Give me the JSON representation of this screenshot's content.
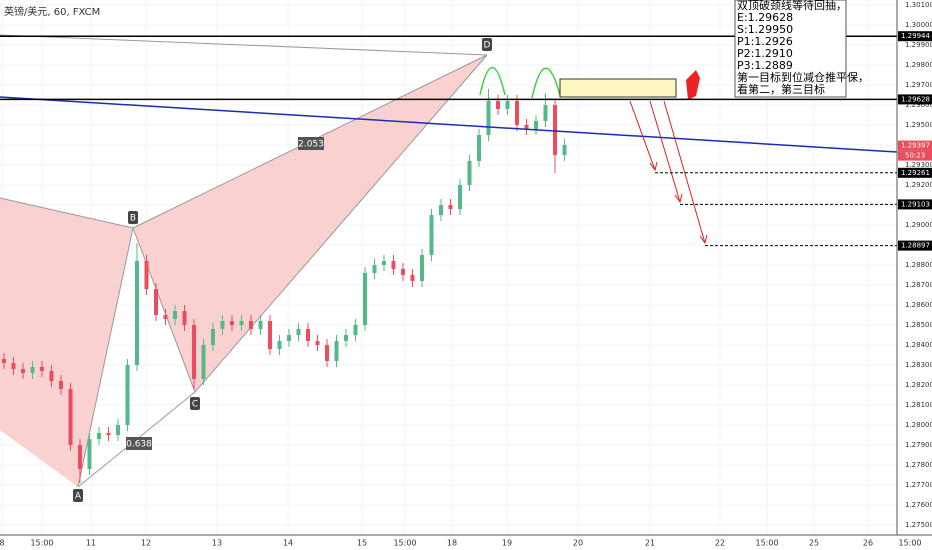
{
  "chart_data": {
    "type": "candlestick",
    "title": "英镑/美元, 60, FXCM",
    "ylim": [
      1.2745,
      1.30125
    ],
    "xlim": [
      -0.42,
      94
    ],
    "yticks": [
      {
        "value": 1.301,
        "label": "1.30100"
      },
      {
        "value": 1.3,
        "label": "1.30000"
      },
      {
        "value": 1.299,
        "label": "1.29900"
      },
      {
        "value": 1.298,
        "label": "1.29800"
      },
      {
        "value": 1.297,
        "label": "1.29700"
      },
      {
        "value": 1.296,
        "label": "1.29600"
      },
      {
        "value": 1.295,
        "label": "1.29500"
      },
      {
        "value": 1.294,
        "label": "1.29400"
      },
      {
        "value": 1.293,
        "label": "1.29300"
      },
      {
        "value": 1.292,
        "label": "1.29200"
      },
      {
        "value": 1.291,
        "label": "1.29100"
      },
      {
        "value": 1.29,
        "label": "1.29000"
      },
      {
        "value": 1.289,
        "label": "1.28900"
      },
      {
        "value": 1.288,
        "label": "1.28800"
      },
      {
        "value": 1.287,
        "label": "1.28700"
      },
      {
        "value": 1.286,
        "label": "1.28600"
      },
      {
        "value": 1.285,
        "label": "1.28500"
      },
      {
        "value": 1.284,
        "label": "1.28400"
      },
      {
        "value": 1.283,
        "label": "1.28300"
      },
      {
        "value": 1.282,
        "label": "1.28200"
      },
      {
        "value": 1.281,
        "label": "1.28100"
      },
      {
        "value": 1.28,
        "label": "1.28000"
      },
      {
        "value": 1.279,
        "label": "1.27900"
      },
      {
        "value": 1.278,
        "label": "1.27800"
      },
      {
        "value": 1.277,
        "label": "1.27700"
      },
      {
        "value": 1.276,
        "label": "1.27600"
      },
      {
        "value": 1.275,
        "label": "1.27500"
      }
    ],
    "xticks": [
      {
        "value": -0.21,
        "label": "8"
      },
      {
        "value": 4.0,
        "label": "15:00"
      },
      {
        "value": 9.16,
        "label": "11"
      },
      {
        "value": 14.95,
        "label": "12"
      },
      {
        "value": 22.42,
        "label": "13"
      },
      {
        "value": 29.9,
        "label": "14"
      },
      {
        "value": 37.68,
        "label": "15"
      },
      {
        "value": 42.21,
        "label": "15:00"
      },
      {
        "value": 47.16,
        "label": "18"
      },
      {
        "value": 52.95,
        "label": "19"
      },
      {
        "value": 60.42,
        "label": "20"
      },
      {
        "value": 68.0,
        "label": "21"
      },
      {
        "value": 75.37,
        "label": "22"
      },
      {
        "value": 80.32,
        "label": "15:00"
      },
      {
        "value": 85.26,
        "label": "25"
      },
      {
        "value": 90.95,
        "label": "26"
      },
      {
        "value": 95.37,
        "label": "15:00"
      }
    ],
    "up_color": "#53b987",
    "down_color": "#eb4d5c",
    "open": [
      1.2833,
      1.2831,
      1.2828,
      1.2826,
      1.2829,
      1.2827,
      1.2822,
      1.2818,
      1.279,
      1.2778,
      1.2793,
      1.2796,
      1.2795,
      1.28,
      1.283,
      1.2882,
      1.2868,
      1.2855,
      1.2853,
      1.2857,
      1.285,
      1.2823,
      1.284,
      1.2848,
      1.2852,
      1.285,
      1.2852,
      1.2848,
      1.2852,
      1.2838,
      1.2842,
      1.2845,
      1.2848,
      1.2842,
      1.284,
      1.2832,
      1.2842,
      1.2845,
      1.285,
      1.2876,
      1.288,
      1.2882,
      1.2878,
      1.2875,
      1.2872,
      1.2885,
      1.2905,
      1.291,
      1.2908,
      1.292,
      1.2932,
      1.2945,
      1.2962,
      1.2958,
      1.2962,
      1.295,
      1.2948,
      1.2952,
      1.296,
      1.2935
    ],
    "high": [
      1.2836,
      1.2834,
      1.2831,
      1.2832,
      1.2832,
      1.283,
      1.2825,
      1.2821,
      1.2793,
      1.2796,
      1.2799,
      1.2799,
      1.2803,
      1.2833,
      1.2891,
      1.2885,
      1.2871,
      1.2858,
      1.286,
      1.286,
      1.2853,
      1.2843,
      1.2851,
      1.2855,
      1.2855,
      1.2855,
      1.2855,
      1.2855,
      1.2855,
      1.2845,
      1.2848,
      1.2851,
      1.2851,
      1.2845,
      1.2843,
      1.2845,
      1.2848,
      1.2853,
      1.2879,
      1.2883,
      1.2885,
      1.2885,
      1.2881,
      1.2878,
      1.2888,
      1.2908,
      1.2913,
      1.2913,
      1.2923,
      1.2935,
      1.2948,
      1.2968,
      1.2965,
      1.2965,
      1.2965,
      1.2953,
      1.2955,
      1.2966,
      1.2963,
      1.2943
    ],
    "low": [
      1.2828,
      1.2825,
      1.2823,
      1.2823,
      1.2824,
      1.2819,
      1.2815,
      1.2787,
      1.2771,
      1.2775,
      1.279,
      1.2792,
      1.2792,
      1.2797,
      1.2827,
      1.2865,
      1.2852,
      1.285,
      1.285,
      1.2847,
      1.2818,
      1.282,
      1.2837,
      1.2845,
      1.2847,
      1.2847,
      1.2845,
      1.2845,
      1.2835,
      1.2835,
      1.2839,
      1.2842,
      1.2839,
      1.2837,
      1.2829,
      1.2829,
      1.2839,
      1.2842,
      1.2847,
      1.2873,
      1.2877,
      1.2875,
      1.2872,
      1.2869,
      1.2869,
      1.2882,
      1.2902,
      1.2905,
      1.2905,
      1.2917,
      1.2929,
      1.2942,
      1.2955,
      1.2955,
      1.2947,
      1.2945,
      1.2945,
      1.2949,
      1.2926,
      1.2932
    ],
    "close": [
      1.2831,
      1.2828,
      1.2826,
      1.2829,
      1.2827,
      1.2822,
      1.2818,
      1.279,
      1.2778,
      1.2793,
      1.2796,
      1.2795,
      1.28,
      1.283,
      1.2882,
      1.2868,
      1.2855,
      1.2853,
      1.2857,
      1.285,
      1.2823,
      1.284,
      1.2848,
      1.2852,
      1.285,
      1.2852,
      1.2848,
      1.2852,
      1.2838,
      1.2842,
      1.2845,
      1.2848,
      1.2842,
      1.284,
      1.2832,
      1.2842,
      1.2845,
      1.285,
      1.2876,
      1.288,
      1.2882,
      1.2878,
      1.2875,
      1.2872,
      1.2885,
      1.2905,
      1.291,
      1.2908,
      1.292,
      1.2932,
      1.2945,
      1.2962,
      1.2958,
      1.2962,
      1.295,
      1.2948,
      1.2952,
      1.296,
      1.2935,
      1.294
    ],
    "price_labels": [
      {
        "value": 1.29944,
        "label": "1.29944",
        "color": "#000000"
      },
      {
        "value": 1.29628,
        "label": "1.29628",
        "color": "#000000"
      },
      {
        "value": 1.29397,
        "label": "1.29397",
        "color": "#eb4d5c",
        "time": "50:23"
      },
      {
        "value": 1.29261,
        "label": "1.29261",
        "color": "#000000"
      },
      {
        "value": 1.29103,
        "label": "1.29103",
        "color": "#000000"
      },
      {
        "value": 1.28897,
        "label": "1.28897",
        "color": "#000000"
      }
    ],
    "pattern_labels": [
      "A",
      "B",
      "C",
      "D"
    ],
    "ratios": [
      "2.053",
      "0.638"
    ],
    "note": [
      "双顶破颈线等待回抽，",
      "E:1.29628",
      "S:1.29950",
      "P1:1.2926",
      "P2:1.2910",
      "P3:1.2889",
      "第一目标到位减仓推平保，",
      "看第二，第三目标"
    ]
  }
}
